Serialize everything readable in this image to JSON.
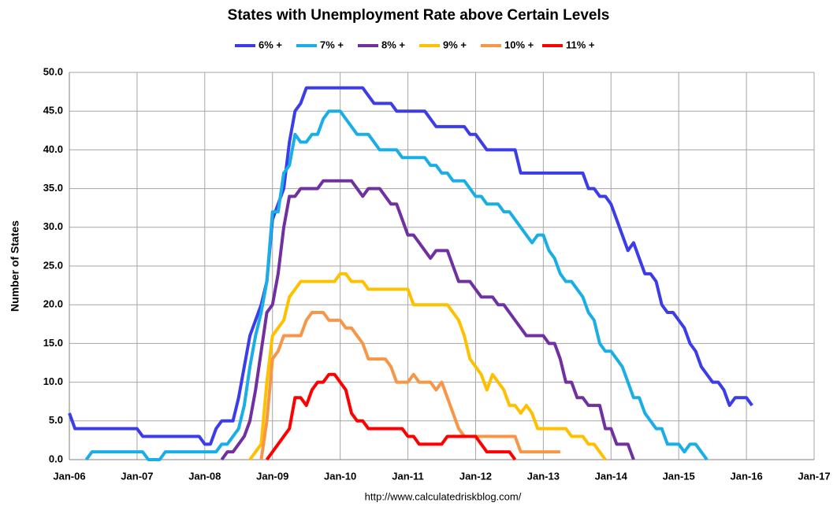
{
  "chart_data": {
    "type": "line",
    "title": "States with Unemployment Rate above Certain Levels",
    "y_label": "Number of States",
    "footer": "http://www.calculatedriskblog.com/",
    "grid": true,
    "legend": "top",
    "xlim": [
      "2006-01",
      "2017-01"
    ],
    "xticks": [
      {
        "value": "2006-01",
        "label": "Jan-06"
      },
      {
        "value": "2007-01",
        "label": "Jan-07"
      },
      {
        "value": "2008-01",
        "label": "Jan-08"
      },
      {
        "value": "2009-01",
        "label": "Jan-09"
      },
      {
        "value": "2010-01",
        "label": "Jan-10"
      },
      {
        "value": "2011-01",
        "label": "Jan-11"
      },
      {
        "value": "2012-01",
        "label": "Jan-12"
      },
      {
        "value": "2013-01",
        "label": "Jan-13"
      },
      {
        "value": "2014-01",
        "label": "Jan-14"
      },
      {
        "value": "2015-01",
        "label": "Jan-15"
      },
      {
        "value": "2016-01",
        "label": "Jan-16"
      },
      {
        "value": "2017-01",
        "label": "Jan-17"
      }
    ],
    "ylim": [
      0,
      50
    ],
    "yticks": [
      {
        "value": 0,
        "label": "0.0"
      },
      {
        "value": 5,
        "label": "5.0"
      },
      {
        "value": 10,
        "label": "10.0"
      },
      {
        "value": 15,
        "label": "15.0"
      },
      {
        "value": 20,
        "label": "20.0"
      },
      {
        "value": 25,
        "label": "25.0"
      },
      {
        "value": 30,
        "label": "30.0"
      },
      {
        "value": 35,
        "label": "35.0"
      },
      {
        "value": 40,
        "label": "40.0"
      },
      {
        "value": 45,
        "label": "45.0"
      },
      {
        "value": 50,
        "label": "50.0"
      }
    ],
    "x": [
      "2006-01",
      "2006-02",
      "2006-03",
      "2006-04",
      "2006-05",
      "2006-06",
      "2006-07",
      "2006-08",
      "2006-09",
      "2006-10",
      "2006-11",
      "2006-12",
      "2007-01",
      "2007-02",
      "2007-03",
      "2007-04",
      "2007-05",
      "2007-06",
      "2007-07",
      "2007-08",
      "2007-09",
      "2007-10",
      "2007-11",
      "2007-12",
      "2008-01",
      "2008-02",
      "2008-03",
      "2008-04",
      "2008-05",
      "2008-06",
      "2008-07",
      "2008-08",
      "2008-09",
      "2008-10",
      "2008-11",
      "2008-12",
      "2009-01",
      "2009-02",
      "2009-03",
      "2009-04",
      "2009-05",
      "2009-06",
      "2009-07",
      "2009-08",
      "2009-09",
      "2009-10",
      "2009-11",
      "2009-12",
      "2010-01",
      "2010-02",
      "2010-03",
      "2010-04",
      "2010-05",
      "2010-06",
      "2010-07",
      "2010-08",
      "2010-09",
      "2010-10",
      "2010-11",
      "2010-12",
      "2011-01",
      "2011-02",
      "2011-03",
      "2011-04",
      "2011-05",
      "2011-06",
      "2011-07",
      "2011-08",
      "2011-09",
      "2011-10",
      "2011-11",
      "2011-12",
      "2012-01",
      "2012-02",
      "2012-03",
      "2012-04",
      "2012-05",
      "2012-06",
      "2012-07",
      "2012-08",
      "2012-09",
      "2012-10",
      "2012-11",
      "2012-12",
      "2013-01",
      "2013-02",
      "2013-03",
      "2013-04",
      "2013-05",
      "2013-06",
      "2013-07",
      "2013-08",
      "2013-09",
      "2013-10",
      "2013-11",
      "2013-12",
      "2014-01",
      "2014-02",
      "2014-03",
      "2014-04",
      "2014-05",
      "2014-06",
      "2014-07",
      "2014-08",
      "2014-09",
      "2014-10",
      "2014-11",
      "2014-12",
      "2015-01",
      "2015-02",
      "2015-03",
      "2015-04",
      "2015-05",
      "2015-06",
      "2015-07",
      "2015-08",
      "2015-09",
      "2015-10",
      "2015-11",
      "2015-12",
      "2016-01",
      "2016-02"
    ],
    "series": [
      {
        "name": "6% +",
        "color": "#3c3ce8",
        "values": [
          6,
          4,
          4,
          4,
          4,
          4,
          4,
          4,
          4,
          4,
          4,
          4,
          4,
          3,
          3,
          3,
          3,
          3,
          3,
          3,
          3,
          3,
          3,
          3,
          2,
          2,
          4,
          5,
          5,
          5,
          8,
          12,
          16,
          18,
          20,
          23,
          31,
          33,
          35,
          41,
          45,
          46,
          48,
          48,
          48,
          48,
          48,
          48,
          48,
          48,
          48,
          48,
          48,
          47,
          46,
          46,
          46,
          46,
          45,
          45,
          45,
          45,
          45,
          45,
          44,
          43,
          43,
          43,
          43,
          43,
          43,
          42,
          42,
          41,
          40,
          40,
          40,
          40,
          40,
          40,
          37,
          37,
          37,
          37,
          37,
          37,
          37,
          37,
          37,
          37,
          37,
          37,
          35,
          35,
          34,
          34,
          33,
          31,
          29,
          27,
          28,
          26,
          24,
          24,
          23,
          20,
          19,
          19,
          18,
          17,
          15,
          14,
          12,
          11,
          10,
          10,
          9,
          7,
          8,
          8,
          8,
          7
        ]
      },
      {
        "name": "7% +",
        "color": "#1aaee6",
        "values": [
          null,
          null,
          null,
          0,
          1,
          1,
          1,
          1,
          1,
          1,
          1,
          1,
          1,
          1,
          0,
          0,
          0,
          1,
          1,
          1,
          1,
          1,
          1,
          1,
          1,
          1,
          1,
          2,
          2,
          3,
          4,
          7,
          12,
          16,
          19,
          23,
          32,
          32,
          37,
          38,
          42,
          41,
          41,
          42,
          42,
          44,
          45,
          45,
          45,
          44,
          43,
          42,
          42,
          42,
          41,
          40,
          40,
          40,
          40,
          39,
          39,
          39,
          39,
          39,
          38,
          38,
          37,
          37,
          36,
          36,
          36,
          35,
          34,
          34,
          33,
          33,
          33,
          32,
          32,
          31,
          30,
          29,
          28,
          29,
          29,
          27,
          26,
          24,
          23,
          23,
          22,
          21,
          19,
          18,
          15,
          14,
          14,
          13,
          12,
          10,
          8,
          8,
          6,
          5,
          4,
          4,
          2,
          2,
          2,
          1,
          2,
          2,
          1,
          0,
          null,
          null,
          null,
          null,
          null,
          null,
          null,
          null
        ]
      },
      {
        "name": "8% +",
        "color": "#7030a0",
        "values": [
          null,
          null,
          null,
          null,
          null,
          null,
          null,
          null,
          null,
          null,
          null,
          null,
          null,
          null,
          null,
          null,
          null,
          null,
          null,
          null,
          null,
          null,
          null,
          null,
          null,
          null,
          null,
          0,
          1,
          1,
          2,
          3,
          5,
          9,
          14,
          19,
          20,
          24,
          30,
          34,
          34,
          35,
          35,
          35,
          35,
          36,
          36,
          36,
          36,
          36,
          36,
          35,
          34,
          35,
          35,
          35,
          34,
          33,
          33,
          31,
          29,
          29,
          28,
          27,
          26,
          27,
          27,
          27,
          25,
          23,
          23,
          23,
          22,
          21,
          21,
          21,
          20,
          20,
          19,
          18,
          17,
          16,
          16,
          16,
          16,
          15,
          15,
          13,
          10,
          10,
          8,
          8,
          7,
          7,
          7,
          4,
          4,
          2,
          2,
          2,
          0,
          null,
          null,
          null,
          null,
          null,
          null,
          null,
          null,
          null,
          null,
          null,
          null,
          null,
          null,
          null,
          null,
          null,
          null,
          null,
          null,
          null
        ]
      },
      {
        "name": "9% +",
        "color": "#ffc000",
        "values": [
          null,
          null,
          null,
          null,
          null,
          null,
          null,
          null,
          null,
          null,
          null,
          null,
          null,
          null,
          null,
          null,
          null,
          null,
          null,
          null,
          null,
          null,
          null,
          null,
          null,
          null,
          null,
          null,
          null,
          null,
          null,
          null,
          0,
          1,
          2,
          10,
          16,
          17,
          18,
          21,
          22,
          23,
          23,
          23,
          23,
          23,
          23,
          23,
          24,
          24,
          23,
          23,
          23,
          22,
          22,
          22,
          22,
          22,
          22,
          22,
          22,
          20,
          20,
          20,
          20,
          20,
          20,
          20,
          19,
          18,
          16,
          13,
          12,
          11,
          9,
          11,
          10,
          9,
          7,
          7,
          6,
          7,
          6,
          4,
          4,
          4,
          4,
          4,
          4,
          3,
          3,
          3,
          2,
          2,
          1,
          0,
          null,
          null,
          null,
          null,
          null,
          null,
          null,
          null,
          null,
          null,
          null,
          null,
          null,
          null,
          null,
          null,
          null,
          null,
          null,
          null,
          null,
          null,
          null,
          null,
          null,
          null
        ]
      },
      {
        "name": "10% +",
        "color": "#f79646",
        "values": [
          null,
          null,
          null,
          null,
          null,
          null,
          null,
          null,
          null,
          null,
          null,
          null,
          null,
          null,
          null,
          null,
          null,
          null,
          null,
          null,
          null,
          null,
          null,
          null,
          null,
          null,
          null,
          null,
          null,
          null,
          null,
          null,
          null,
          null,
          0,
          5,
          13,
          14,
          16,
          16,
          16,
          16,
          18,
          19,
          19,
          19,
          18,
          18,
          18,
          17,
          17,
          16,
          15,
          13,
          13,
          13,
          13,
          12,
          10,
          10,
          10,
          11,
          10,
          10,
          10,
          9,
          10,
          8,
          6,
          4,
          3,
          3,
          3,
          3,
          3,
          3,
          3,
          3,
          3,
          3,
          1,
          1,
          1,
          1,
          1,
          1,
          1,
          1,
          null,
          null,
          null,
          null,
          null,
          null,
          null,
          null,
          null,
          null,
          null,
          null,
          null,
          null,
          null,
          null,
          null,
          null,
          null,
          null,
          null,
          null,
          null,
          null,
          null,
          null,
          null,
          null,
          null,
          null,
          null,
          null,
          null,
          null
        ]
      },
      {
        "name": "11% +",
        "color": "#ff0000",
        "values": [
          null,
          null,
          null,
          null,
          null,
          null,
          null,
          null,
          null,
          null,
          null,
          null,
          null,
          null,
          null,
          null,
          null,
          null,
          null,
          null,
          null,
          null,
          null,
          null,
          null,
          null,
          null,
          null,
          null,
          null,
          null,
          null,
          null,
          null,
          null,
          0,
          1,
          2,
          3,
          4,
          8,
          8,
          7,
          9,
          10,
          10,
          11,
          11,
          10,
          9,
          6,
          5,
          5,
          4,
          4,
          4,
          4,
          4,
          4,
          4,
          3,
          3,
          2,
          2,
          2,
          2,
          2,
          3,
          3,
          3,
          3,
          3,
          3,
          2,
          1,
          1,
          1,
          1,
          1,
          0,
          null,
          null,
          null,
          null,
          null,
          null,
          null,
          null,
          null,
          null,
          null,
          null,
          null,
          null,
          null,
          null,
          null,
          null,
          null,
          null,
          null,
          null,
          null,
          null,
          null,
          null,
          null,
          null,
          null,
          null,
          null,
          null,
          null,
          null,
          null,
          null,
          null,
          null,
          null,
          null,
          null,
          null
        ]
      }
    ]
  }
}
